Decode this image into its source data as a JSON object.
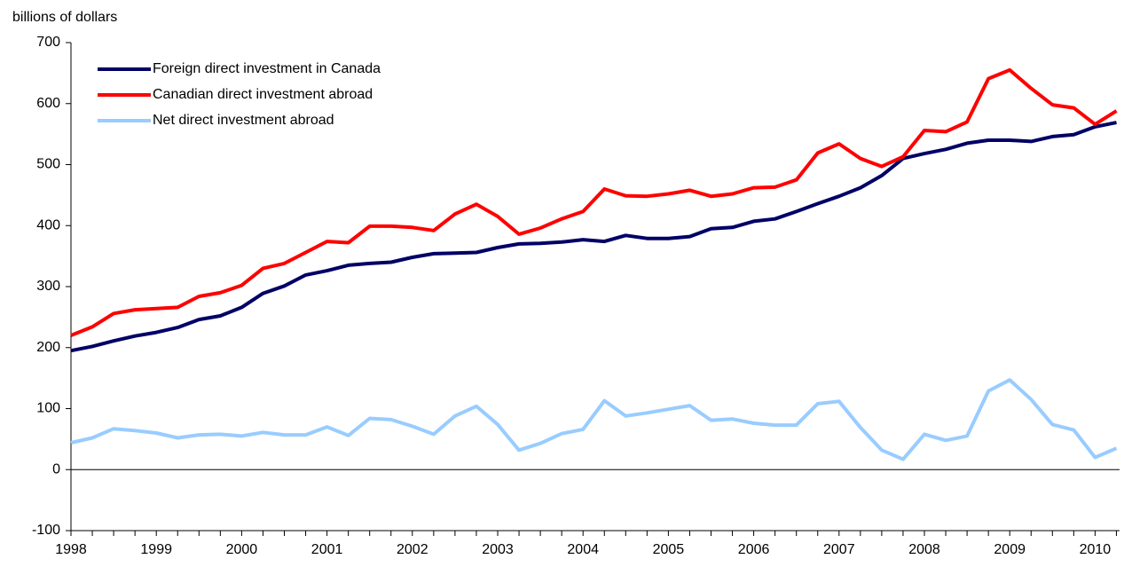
{
  "chart_data": {
    "type": "line",
    "y_label": "billions of dollars",
    "categories": [
      "1998",
      null,
      null,
      null,
      "1999",
      null,
      null,
      null,
      "2000",
      null,
      null,
      null,
      "2001",
      null,
      null,
      null,
      "2002",
      null,
      null,
      null,
      "2003",
      null,
      null,
      null,
      "2004",
      null,
      null,
      null,
      "2005",
      null,
      null,
      null,
      "2006",
      null,
      null,
      null,
      "2007",
      null,
      null,
      null,
      "2008",
      null,
      null,
      null,
      "2009",
      null,
      null,
      null,
      "2010",
      null
    ],
    "series": [
      {
        "name": "Foreign direct investment in Canada",
        "color": "#000066",
        "values": [
          195,
          202,
          211,
          219,
          225,
          233,
          246,
          252,
          266,
          289,
          301,
          319,
          326,
          335,
          338,
          340,
          348,
          354,
          355,
          356,
          364,
          370,
          371,
          373,
          377,
          374,
          384,
          379,
          379,
          382,
          395,
          397,
          407,
          411,
          423,
          436,
          448,
          462,
          482,
          510,
          518,
          525,
          535,
          540,
          540,
          538,
          546,
          549,
          562,
          569
        ]
      },
      {
        "name": "Canadian direct investment abroad",
        "color": "#ff0000",
        "values": [
          220,
          234,
          256,
          262,
          264,
          266,
          284,
          290,
          302,
          330,
          338,
          356,
          374,
          372,
          399,
          399,
          397,
          392,
          419,
          435,
          415,
          386,
          396,
          411,
          423,
          460,
          449,
          448,
          452,
          458,
          448,
          452,
          462,
          463,
          475,
          519,
          534,
          510,
          497,
          513,
          556,
          554,
          570,
          641,
          655,
          625,
          598,
          593,
          566,
          588
        ]
      },
      {
        "name": "Net direct investment abroad",
        "color": "#99ccff",
        "values": [
          44,
          52,
          67,
          64,
          60,
          52,
          57,
          58,
          55,
          61,
          57,
          57,
          70,
          56,
          84,
          82,
          71,
          58,
          88,
          104,
          74,
          32,
          43,
          59,
          66,
          113,
          88,
          93,
          99,
          105,
          81,
          83,
          76,
          73,
          73,
          108,
          112,
          69,
          32,
          17,
          58,
          48,
          55,
          129,
          147,
          115,
          74,
          65,
          20,
          35
        ]
      }
    ],
    "ylim": [
      -100,
      700
    ],
    "yticks": [
      -100,
      0,
      100,
      200,
      300,
      400,
      500,
      600,
      700
    ],
    "legend": "upper left"
  }
}
